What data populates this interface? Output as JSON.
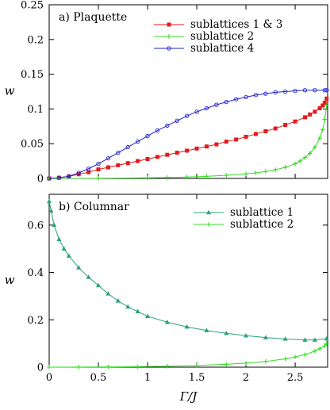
{
  "chart_data": [
    {
      "type": "line",
      "title": "a) Plaquette",
      "xlabel": "",
      "ylabel": "w",
      "xlim": [
        0,
        2.83
      ],
      "ylim": [
        0,
        0.25
      ],
      "xticks": [
        0,
        0.5,
        1,
        1.5,
        2,
        2.5
      ],
      "xtick_labels": [
        "",
        "",
        "",
        "",
        "",
        ""
      ],
      "yticks": [
        0,
        0.05,
        0.1,
        0.15,
        0.2,
        0.25
      ],
      "ytick_labels": [
        "0",
        "0.05",
        "0.1",
        "0.15",
        "0.2",
        "0.25"
      ],
      "legend_position": "top-right",
      "series": [
        {
          "name": "sublattices 1 & 3",
          "color": "#e41a1c",
          "marker": "square",
          "x": [
            0,
            0.1,
            0.2,
            0.3,
            0.4,
            0.5,
            0.6,
            0.7,
            0.8,
            0.9,
            1.0,
            1.1,
            1.2,
            1.3,
            1.4,
            1.5,
            1.6,
            1.7,
            1.8,
            1.9,
            2.0,
            2.1,
            2.2,
            2.3,
            2.4,
            2.5,
            2.6,
            2.65,
            2.7,
            2.75,
            2.78,
            2.8,
            2.82
          ],
          "y": [
            0,
            0.001,
            0.003,
            0.006,
            0.009,
            0.013,
            0.016,
            0.019,
            0.022,
            0.025,
            0.028,
            0.031,
            0.034,
            0.037,
            0.04,
            0.043,
            0.046,
            0.049,
            0.053,
            0.056,
            0.06,
            0.064,
            0.068,
            0.072,
            0.077,
            0.082,
            0.088,
            0.092,
            0.096,
            0.101,
            0.105,
            0.109,
            0.115
          ]
        },
        {
          "name": "sublattice 2",
          "color": "#33dd22",
          "marker": "plus",
          "x": [
            0,
            0.5,
            1.0,
            1.2,
            1.4,
            1.6,
            1.8,
            2.0,
            2.1,
            2.2,
            2.3,
            2.4,
            2.5,
            2.55,
            2.6,
            2.65,
            2.7,
            2.75,
            2.78,
            2.8,
            2.82
          ],
          "y": [
            0,
            0.0002,
            0.0008,
            0.0013,
            0.002,
            0.003,
            0.0045,
            0.0065,
            0.008,
            0.01,
            0.0125,
            0.016,
            0.021,
            0.025,
            0.03,
            0.036,
            0.045,
            0.058,
            0.07,
            0.085,
            0.105
          ]
        },
        {
          "name": "sublattice 4",
          "color": "#2222cc",
          "marker": "circle",
          "x": [
            0,
            0.1,
            0.2,
            0.3,
            0.4,
            0.5,
            0.6,
            0.7,
            0.8,
            0.9,
            1.0,
            1.1,
            1.2,
            1.3,
            1.4,
            1.5,
            1.6,
            1.7,
            1.8,
            1.9,
            2.0,
            2.1,
            2.2,
            2.3,
            2.4,
            2.5,
            2.6,
            2.7,
            2.8,
            2.82
          ],
          "y": [
            0,
            0.001,
            0.003,
            0.008,
            0.014,
            0.021,
            0.029,
            0.037,
            0.045,
            0.053,
            0.061,
            0.069,
            0.076,
            0.083,
            0.09,
            0.096,
            0.101,
            0.106,
            0.11,
            0.114,
            0.117,
            0.12,
            0.122,
            0.124,
            0.125,
            0.126,
            0.127,
            0.127,
            0.127,
            0.127
          ]
        }
      ]
    },
    {
      "type": "line",
      "title": "b) Columnar",
      "xlabel": "Γ/J",
      "ylabel": "w",
      "xlim": [
        0,
        2.83
      ],
      "ylim": [
        0,
        0.73
      ],
      "xticks": [
        0,
        0.5,
        1,
        1.5,
        2,
        2.5
      ],
      "xtick_labels": [
        "0",
        "0.5",
        "1",
        "1.5",
        "2",
        "2.5"
      ],
      "yticks": [
        0,
        0.2,
        0.4,
        0.6
      ],
      "ytick_labels": [
        "0",
        "0.2",
        "0.4",
        "0.6"
      ],
      "legend_position": "top-right",
      "series": [
        {
          "name": "sublattice 1",
          "color": "#2ea07a",
          "marker": "triangle",
          "x": [
            0.0,
            0.02,
            0.05,
            0.1,
            0.15,
            0.2,
            0.3,
            0.4,
            0.5,
            0.6,
            0.7,
            0.8,
            0.9,
            1.0,
            1.2,
            1.4,
            1.6,
            1.8,
            2.0,
            2.2,
            2.4,
            2.6,
            2.7,
            2.82
          ],
          "y": [
            0.7,
            0.66,
            0.6,
            0.54,
            0.5,
            0.47,
            0.42,
            0.38,
            0.345,
            0.31,
            0.28,
            0.255,
            0.235,
            0.215,
            0.19,
            0.17,
            0.155,
            0.143,
            0.133,
            0.125,
            0.119,
            0.115,
            0.115,
            0.12
          ]
        },
        {
          "name": "sublattice 2",
          "color": "#33dd22",
          "marker": "plus",
          "x": [
            0,
            0.3,
            0.6,
            0.9,
            1.2,
            1.5,
            1.8,
            2.0,
            2.2,
            2.4,
            2.5,
            2.6,
            2.7,
            2.75,
            2.8,
            2.82
          ],
          "y": [
            0,
            0.0005,
            0.001,
            0.002,
            0.004,
            0.007,
            0.012,
            0.017,
            0.024,
            0.035,
            0.043,
            0.053,
            0.068,
            0.078,
            0.09,
            0.1
          ]
        }
      ]
    }
  ]
}
